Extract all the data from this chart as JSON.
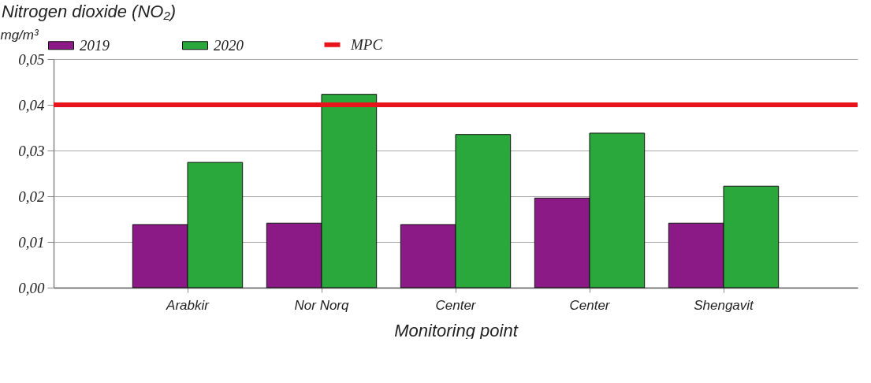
{
  "chart_data": {
    "type": "bar",
    "title": "Nitrogen dioxide (NO₂)",
    "ylabel": "mg/m³",
    "xlabel": "Monitoring point",
    "categories": [
      "Arabkir",
      "Nor Norq",
      "Center",
      "Center",
      "Shengavit"
    ],
    "series": [
      {
        "name": "2019",
        "color": "#8b1a86",
        "values": [
          0.0138,
          0.0141,
          0.0138,
          0.0196,
          0.0141
        ]
      },
      {
        "name": "2020",
        "color": "#2aa83c",
        "values": [
          0.0274,
          0.0423,
          0.0335,
          0.0338,
          0.0222
        ]
      }
    ],
    "ylim": [
      0,
      0.05
    ],
    "yticks": [
      {
        "value": 0,
        "label": "0,00"
      },
      {
        "value": 0.01,
        "label": "0,01"
      },
      {
        "value": 0.02,
        "label": "0,02"
      },
      {
        "value": 0.03,
        "label": "0,03"
      },
      {
        "value": 0.04,
        "label": "0,04"
      },
      {
        "value": 0.05,
        "label": "0,05"
      }
    ],
    "ref_lines": [
      {
        "axis": "y",
        "value": 0.04,
        "label": "MPC",
        "color": "#e8141c"
      }
    ],
    "grid": "y",
    "legend": "top"
  }
}
